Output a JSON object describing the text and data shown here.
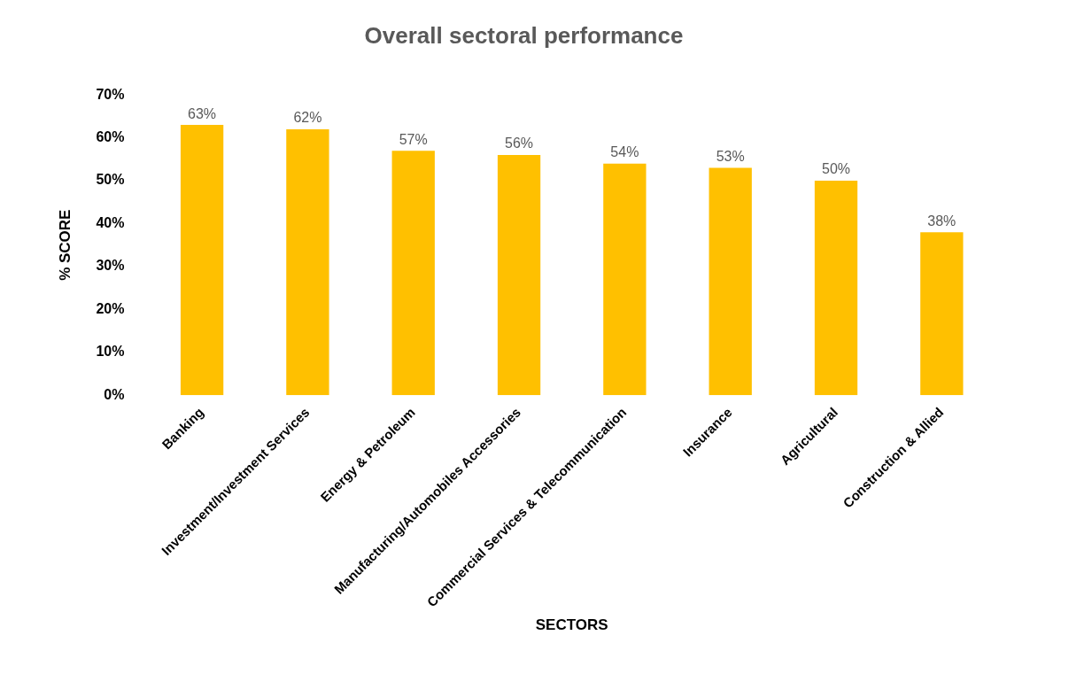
{
  "chart_data": {
    "type": "bar",
    "title": "Overall sectoral performance",
    "xlabel": "SECTORS",
    "ylabel": "% SCORE",
    "categories": [
      "Banking",
      "Investment/Investment Services",
      "Energy & Petroleum",
      "Manufacturing/Automobiles Accessories",
      "Commercial Services & Telecommunication",
      "Insurance",
      "Agricultural",
      "Construction & Allied"
    ],
    "values": [
      63,
      62,
      57,
      56,
      54,
      53,
      50,
      38
    ],
    "value_labels": [
      "63%",
      "62%",
      "57%",
      "56%",
      "54%",
      "53%",
      "50%",
      "38%"
    ],
    "color": "#ffc000",
    "ylim": [
      0,
      70
    ],
    "yticks": [
      {
        "value": 0,
        "label": "0%"
      },
      {
        "value": 10,
        "label": "10%"
      },
      {
        "value": 20,
        "label": "20%"
      },
      {
        "value": 30,
        "label": "30%"
      },
      {
        "value": 40,
        "label": "40%"
      },
      {
        "value": 50,
        "label": "50%"
      },
      {
        "value": 60,
        "label": "60%"
      },
      {
        "value": 70,
        "label": "70%"
      }
    ],
    "grid": false,
    "legend": false
  }
}
